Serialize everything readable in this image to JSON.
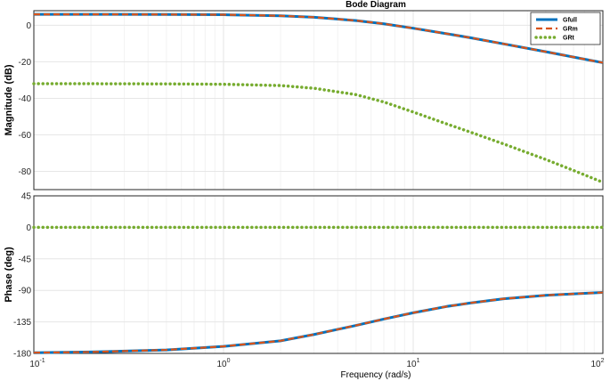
{
  "colors": {
    "Gfull": "#0072BD",
    "GRm": "#D95319",
    "GRt": "#77AC30",
    "grid": "#e6e6e6",
    "minor_grid": "#f2f2f2",
    "axes": "#262626"
  },
  "chart_data": {
    "type": "line",
    "title": "Bode Diagram",
    "xlabel": "Frequency  (rad/s)",
    "xscale": "log",
    "xlim": [
      0.1,
      100
    ],
    "x_ticks": [
      {
        "value": 0.1,
        "base": "10",
        "exp": "-1"
      },
      {
        "value": 1,
        "base": "10",
        "exp": "0"
      },
      {
        "value": 10,
        "base": "10",
        "exp": "1"
      },
      {
        "value": 100,
        "base": "10",
        "exp": "2"
      }
    ],
    "grid": true,
    "legend_location": "top-right",
    "legend": [
      {
        "name": "Gfull",
        "style": "solid"
      },
      {
        "name": "GRm",
        "style": "dashed"
      },
      {
        "name": "GRt",
        "style": "dotted"
      }
    ],
    "x": [
      0.1,
      0.2,
      0.5,
      1,
      2,
      3,
      5,
      7,
      10,
      15,
      20,
      30,
      50,
      70,
      100
    ],
    "panels": [
      {
        "ylabel": "Magnitude (dB)",
        "ylim": [
          -90,
          8
        ],
        "yticks": [
          0,
          -20,
          -40,
          -60,
          -80
        ],
        "series": [
          {
            "name": "Gfull",
            "values": [
              6.0,
              6.0,
              5.9,
              5.8,
              5.2,
              4.4,
              2.6,
              0.8,
              -1.6,
              -4.6,
              -6.8,
              -10.2,
              -14.5,
              -17.4,
              -20.5
            ]
          },
          {
            "name": "GRm",
            "values": [
              6.0,
              6.0,
              5.9,
              5.8,
              5.2,
              4.4,
              2.6,
              0.8,
              -1.6,
              -4.6,
              -6.8,
              -10.2,
              -14.5,
              -17.4,
              -20.5
            ]
          },
          {
            "name": "GRt",
            "values": [
              -32.0,
              -32.0,
              -32.1,
              -32.3,
              -33.0,
              -34.5,
              -38.0,
              -42.0,
              -47.5,
              -54.0,
              -58.5,
              -65.0,
              -73.5,
              -79.5,
              -86.0
            ]
          }
        ]
      },
      {
        "ylabel": "Phase (deg)",
        "ylim": [
          -180,
          45
        ],
        "yticks": [
          45,
          0,
          -45,
          -90,
          -135,
          -180
        ],
        "series": [
          {
            "name": "Gfull",
            "values": [
              -179,
              -178,
              -175,
              -170,
              -162,
              -153,
              -140,
              -131,
              -122,
              -113,
              -108,
              -102,
              -97,
              -95,
              -93
            ]
          },
          {
            "name": "GRm",
            "values": [
              -179,
              -178,
              -175,
              -170,
              -162,
              -153,
              -140,
              -131,
              -122,
              -113,
              -108,
              -102,
              -97,
              -95,
              -93
            ]
          },
          {
            "name": "GRt",
            "values": [
              0,
              0,
              0,
              0,
              0,
              0,
              0,
              0,
              0,
              0,
              0,
              0,
              0,
              0,
              0
            ]
          }
        ]
      }
    ]
  }
}
